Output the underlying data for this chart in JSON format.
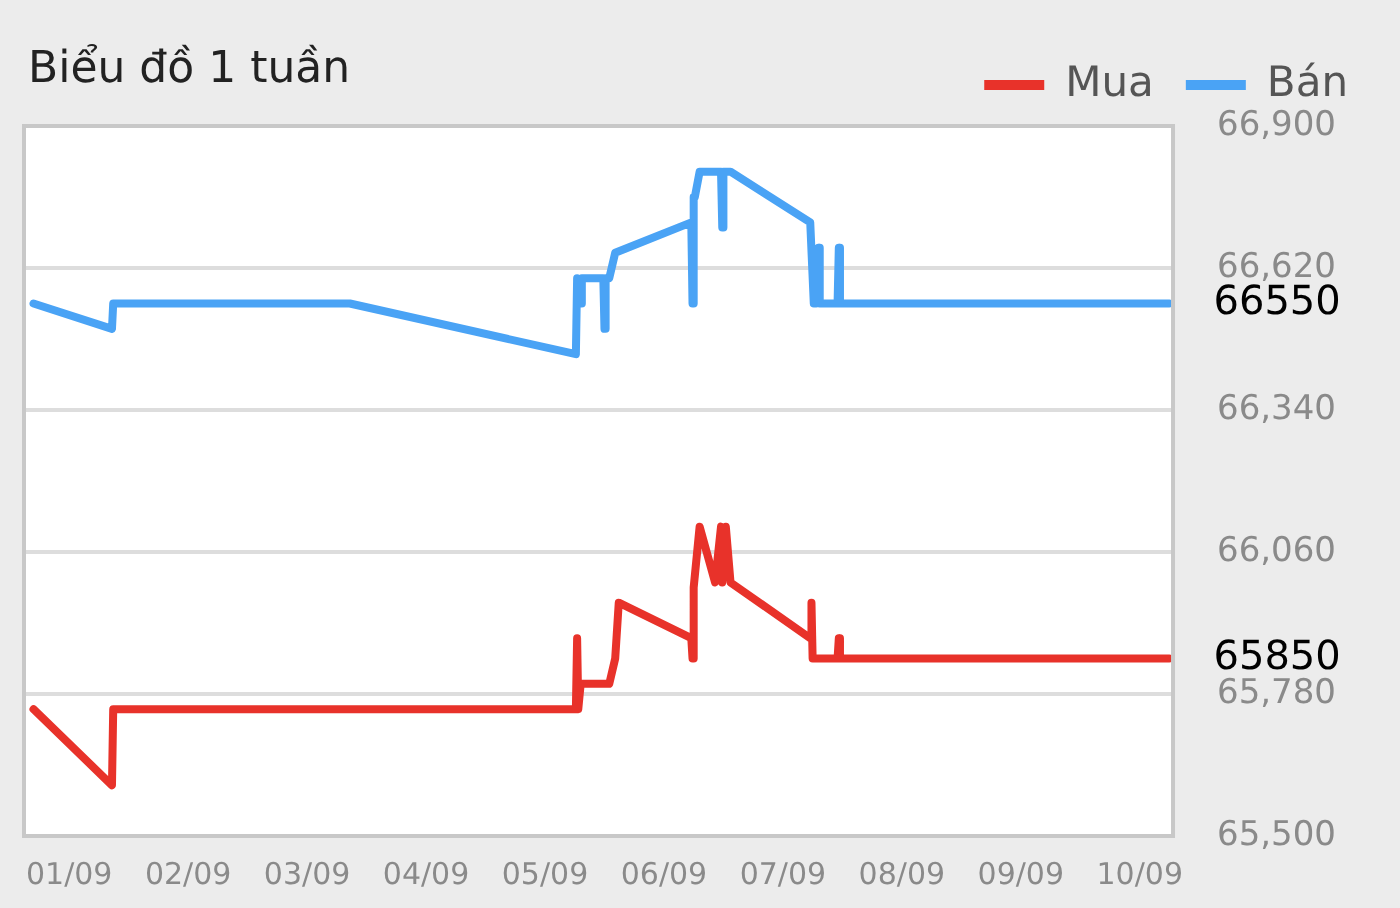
{
  "chart_data": {
    "type": "line",
    "title": "Biểu đồ 1 tuần",
    "series": [
      {
        "name": "Mua",
        "color": "#e8322a",
        "x": [
          "--08-31T16:48",
          "--09-01T08:38",
          "--09-01T08:53",
          "--09-05T06:14",
          "--09-05T06:29",
          "--09-05T06:43",
          "--09-05T07:12",
          "--09-05T12:58",
          "--09-05T14:10",
          "--09-05T14:53",
          "--09-06T05:31",
          "--09-06T05:46",
          "--09-06T06:00",
          "--09-06T07:12",
          "--09-06T10:19",
          "--09-06T11:31",
          "--09-06T11:46",
          "--09-06T12:29",
          "--09-06T13:26",
          "--09-07T05:31",
          "--09-07T05:46",
          "--09-07T06:00",
          "--09-07T11:02",
          "--09-07T11:17",
          "--09-07T11:31",
          "--09-10T06:00"
        ],
        "values": [
          65750,
          65600,
          65750,
          65750,
          65890,
          65750,
          65800,
          65800,
          65850,
          65960,
          65890,
          65850,
          65990,
          66110,
          66000,
          66110,
          66000,
          66110,
          66000,
          65890,
          65960,
          65850,
          65850,
          65890,
          65850,
          65850
        ]
      },
      {
        "name": "Bán",
        "color": "#4aa3f5",
        "x": [
          "--08-31T16:48",
          "--09-01T08:38",
          "--09-01T08:53",
          "--09-03T08:38",
          "--09-05T06:14",
          "--09-05T06:29",
          "--09-05T07:12",
          "--09-05T07:26",
          "--09-05T11:46",
          "--09-05T12:00",
          "--09-05T12:14",
          "--09-05T12:58",
          "--09-05T14:10",
          "--09-06T05:31",
          "--09-06T05:46",
          "--09-06T06:00",
          "--09-06T06:14",
          "--09-06T07:12",
          "--09-06T11:31",
          "--09-06T11:46",
          "--09-06T12:00",
          "--09-06T13:26",
          "--09-07T05:31",
          "--09-07T06:14",
          "--09-07T06:43",
          "--09-07T07:12",
          "--09-07T07:26",
          "--09-07T11:02",
          "--09-07T11:17",
          "--09-07T11:31",
          "--09-10T06:00"
        ],
        "values": [
          66550,
          66500,
          66550,
          66550,
          66450,
          66600,
          66550,
          66600,
          66600,
          66500,
          66600,
          66600,
          66650,
          66710,
          66550,
          66760,
          66760,
          66810,
          66810,
          66700,
          66810,
          66810,
          66710,
          66550,
          66550,
          66660,
          66550,
          66550,
          66660,
          66550,
          66550
        ]
      }
    ],
    "xlim": [
      "--08-31T14:53",
      "--09-10T06:43"
    ],
    "xticks": [
      {
        "value": "--09-01",
        "label": "01/09"
      },
      {
        "value": "--09-02",
        "label": "02/09"
      },
      {
        "value": "--09-03",
        "label": "03/09"
      },
      {
        "value": "--09-04",
        "label": "04/09"
      },
      {
        "value": "--09-05",
        "label": "05/09"
      },
      {
        "value": "--09-06",
        "label": "06/09"
      },
      {
        "value": "--09-07",
        "label": "07/09"
      },
      {
        "value": "--09-08",
        "label": "08/09"
      },
      {
        "value": "--09-09",
        "label": "09/09"
      },
      {
        "value": "--09-10",
        "label": "10/09"
      }
    ],
    "ylim": [
      65500,
      66900
    ],
    "yticks": [
      {
        "value": 65500,
        "label": "65,500"
      },
      {
        "value": 65780,
        "label": "65,780"
      },
      {
        "value": 66060,
        "label": "66,060"
      },
      {
        "value": 66340,
        "label": "66,340"
      },
      {
        "value": 66620,
        "label": "66,620"
      },
      {
        "value": 66900,
        "label": "66,900"
      }
    ],
    "annotations": [
      {
        "text": "66550",
        "x": "--09-10T06:00",
        "y": 66550
      },
      {
        "text": "65850",
        "x": "--09-10T06:00",
        "y": 65850
      }
    ],
    "grid": "y",
    "legend": "top right",
    "marker": "none",
    "line_style": "solid"
  }
}
